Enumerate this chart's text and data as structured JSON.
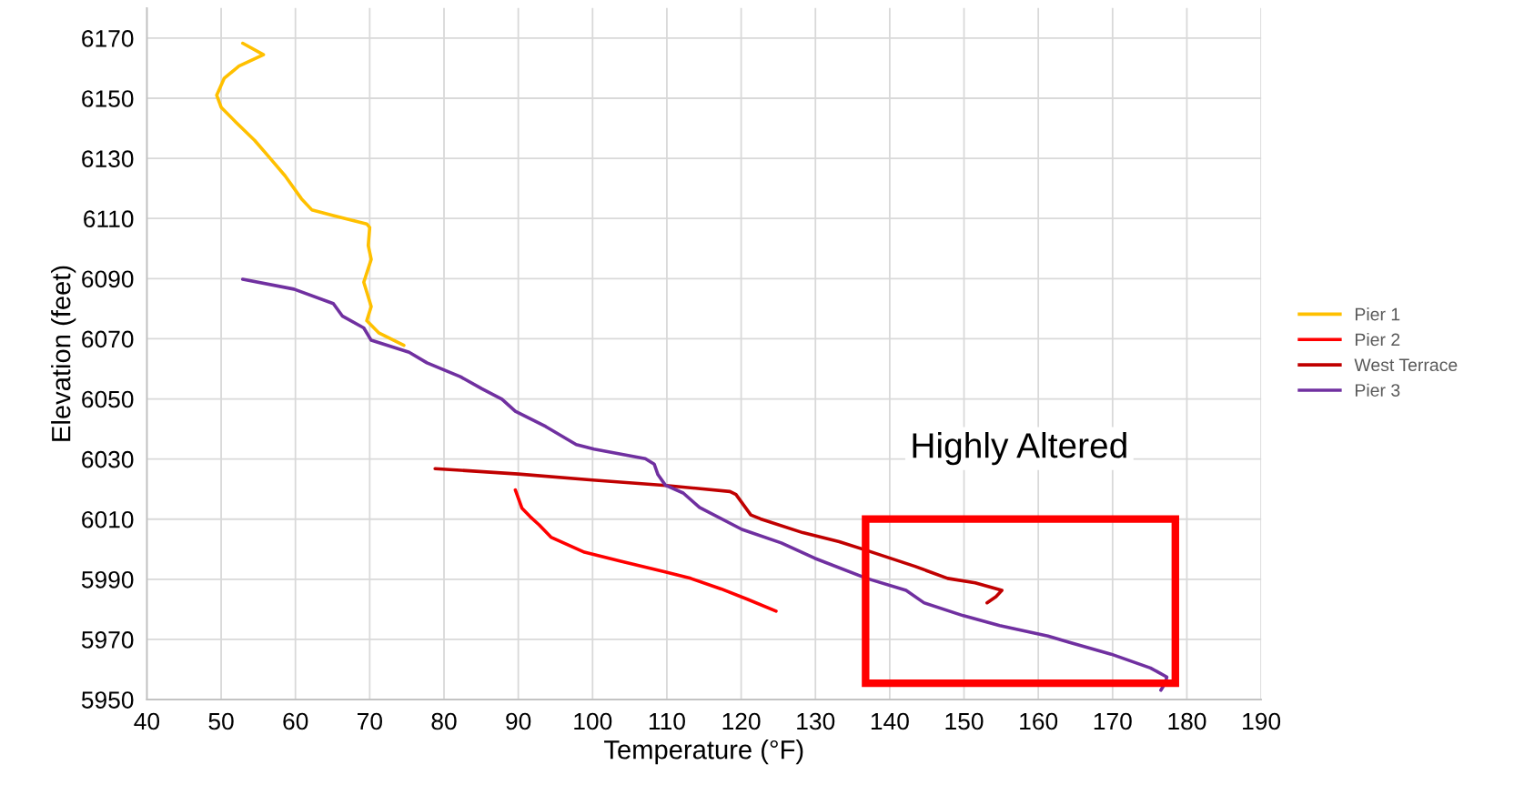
{
  "chart_data": {
    "type": "line",
    "xlabel": "Temperature (°F)",
    "ylabel": "Elevation (feet)",
    "xlim": [
      40,
      190
    ],
    "xticks": [
      40,
      50,
      60,
      70,
      80,
      90,
      100,
      110,
      120,
      130,
      140,
      150,
      160,
      170,
      180,
      190
    ],
    "ylim": [
      5950,
      6180
    ],
    "yticks": [
      5950,
      5970,
      5990,
      6010,
      6030,
      6050,
      6070,
      6090,
      6110,
      6130,
      6150,
      6170
    ],
    "grid": true,
    "legend": "right",
    "marker": "none",
    "line_style": "solid",
    "annotations": [
      "Highly Altered"
    ],
    "series": [
      {
        "name": "Pier 1",
        "color": "#ffc000",
        "x": [
          52.9,
          55.7,
          52.4,
          50.4,
          49.4,
          50,
          52,
          54.5,
          56.5,
          58.6,
          60.8,
          62.2,
          65.1,
          69.6,
          70,
          69.8,
          70.2,
          69.2,
          70.2,
          69.6,
          71.2,
          74.6
        ],
        "values": [
          6168.3,
          6164.5,
          6160.7,
          6156.6,
          6151,
          6147,
          6142,
          6136,
          6130.3,
          6124.2,
          6116.6,
          6112.9,
          6111,
          6108.2,
          6107,
          6101,
          6096.4,
          6088.8,
          6080.7,
          6076,
          6072,
          6067.8
        ]
      },
      {
        "name": "Pier 2",
        "color": "#ff0000",
        "x": [
          89.6,
          90.5,
          91.6,
          92.8,
          94.4,
          98.9,
          103.8,
          109.9,
          113.2,
          117.3,
          120.9,
          124.7
        ],
        "values": [
          6019.7,
          6013.6,
          6010.8,
          6008.1,
          6004,
          5999,
          5996,
          5992.4,
          5990.3,
          5986.8,
          5983.3,
          5979.4
        ]
      },
      {
        "name": "West Terrace",
        "color": "#c00000",
        "x": [
          78.8,
          90,
          100,
          109.9,
          118.5,
          119.3,
          121.3,
          122.6,
          128.3,
          133.2,
          136.9,
          143.4,
          147.8,
          151.5,
          155.1,
          154.3,
          153.1
        ],
        "values": [
          6026.8,
          6025,
          6023,
          6021.2,
          6019.2,
          6018.2,
          6011.4,
          6010.1,
          6005.5,
          6002.5,
          5999.6,
          5994.3,
          5990.3,
          5988.8,
          5986.3,
          5984.2,
          5982.2
        ]
      },
      {
        "name": "Pier 3",
        "color": "#7030a0",
        "x": [
          52.9,
          59.8,
          65.1,
          66.3,
          69.2,
          70.2,
          75.3,
          77.7,
          82.2,
          85.1,
          87.8,
          89.6,
          93.7,
          97.8,
          100.2,
          107.1,
          108.3,
          108.8,
          109.8,
          112.2,
          114.4,
          120.1,
          125.4,
          129.9,
          136.9,
          142.2,
          144.6,
          149.9,
          154.8,
          161.3,
          164.1,
          169.8,
          175.1,
          177.3,
          177.1,
          176.5
        ],
        "values": [
          6089.8,
          6086.5,
          6081.7,
          6077.6,
          6073.6,
          6069.5,
          6065.5,
          6062,
          6057.4,
          6053.4,
          6049.9,
          6045.9,
          6040.8,
          6034.8,
          6033.3,
          6030.1,
          6028.3,
          6024.8,
          6021.3,
          6018.7,
          6013.9,
          6006.6,
          6002.1,
          5997,
          5990.3,
          5986.3,
          5982.2,
          5977.9,
          5974.6,
          5971.1,
          5969.1,
          5965.1,
          5960.5,
          5957.5,
          5955.5,
          5953.1
        ]
      }
    ]
  }
}
